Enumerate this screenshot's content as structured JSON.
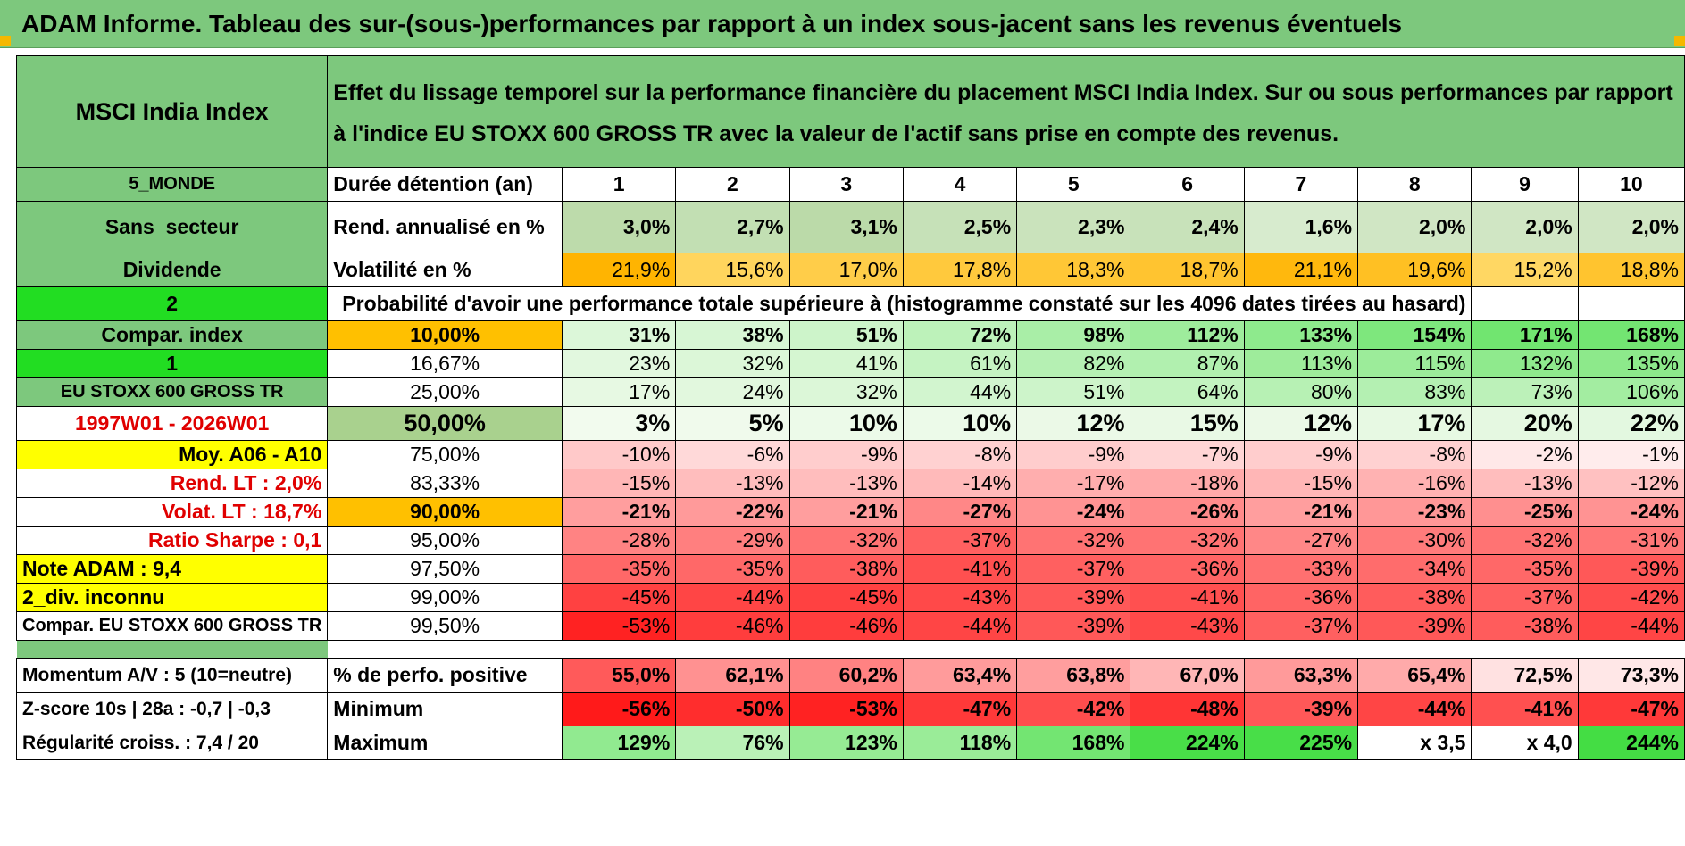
{
  "title": "ADAM Informe. Tableau des sur-(sous-)performances par rapport à un index sous-jacent sans les revenus éventuels",
  "header": {
    "index_name": "MSCI India Index",
    "description": "Effet du lissage temporel sur la performance financière du placement MSCI India Index. Sur ou sous performances par rapport à l'indice EU STOXX 600 GROSS TR avec la valeur de l'actif sans prise en compte des revenus."
  },
  "rows": {
    "holding": {
      "side": "5_MONDE",
      "label": "Durée détention (an)",
      "years": [
        "1",
        "2",
        "3",
        "4",
        "5",
        "6",
        "7",
        "8",
        "9",
        "10"
      ]
    },
    "return": {
      "side": "Sans_secteur",
      "label": "Rend. annualisé en %",
      "values": [
        "3,0%",
        "2,7%",
        "3,1%",
        "2,5%",
        "2,3%",
        "2,4%",
        "1,6%",
        "2,0%",
        "2,0%",
        "2,0%"
      ]
    },
    "volatility": {
      "side": "Dividende",
      "label": "Volatilité en %",
      "values": [
        "21,9%",
        "15,6%",
        "17,0%",
        "17,8%",
        "18,3%",
        "18,7%",
        "21,1%",
        "19,6%",
        "15,2%",
        "18,8%"
      ]
    },
    "prob_header": {
      "side": "2",
      "label": "Probabilité d'avoir une performance totale supérieure à (histogramme constaté sur les 4096 dates tirées au hasard)"
    },
    "quantiles": [
      {
        "side": "Compar. index",
        "pct": "10,00%",
        "values": [
          "31%",
          "38%",
          "51%",
          "72%",
          "98%",
          "112%",
          "133%",
          "154%",
          "171%",
          "168%"
        ]
      },
      {
        "side": "1",
        "pct": "16,67%",
        "values": [
          "23%",
          "32%",
          "41%",
          "61%",
          "82%",
          "87%",
          "113%",
          "115%",
          "132%",
          "135%"
        ]
      },
      {
        "side": "EU STOXX 600 GROSS TR",
        "pct": "25,00%",
        "values": [
          "17%",
          "24%",
          "32%",
          "44%",
          "51%",
          "64%",
          "80%",
          "83%",
          "73%",
          "106%"
        ]
      },
      {
        "side": "1997W01 - 2026W01",
        "pct": "50,00%",
        "values": [
          "3%",
          "5%",
          "10%",
          "10%",
          "12%",
          "15%",
          "12%",
          "17%",
          "20%",
          "22%"
        ]
      },
      {
        "side": "Moy. A06 - A10",
        "pct": "75,00%",
        "values": [
          "-10%",
          "-6%",
          "-9%",
          "-8%",
          "-9%",
          "-7%",
          "-9%",
          "-8%",
          "-2%",
          "-1%"
        ]
      },
      {
        "side": "Rend. LT :   2,0%",
        "pct": "83,33%",
        "values": [
          "-15%",
          "-13%",
          "-13%",
          "-14%",
          "-17%",
          "-18%",
          "-15%",
          "-16%",
          "-13%",
          "-12%"
        ]
      },
      {
        "side": "Volat. LT :   18,7%",
        "pct": "90,00%",
        "values": [
          "-21%",
          "-22%",
          "-21%",
          "-27%",
          "-24%",
          "-26%",
          "-21%",
          "-23%",
          "-25%",
          "-24%"
        ]
      },
      {
        "side": "Ratio Sharpe :    0,1",
        "pct": "95,00%",
        "values": [
          "-28%",
          "-29%",
          "-32%",
          "-37%",
          "-32%",
          "-32%",
          "-27%",
          "-30%",
          "-32%",
          "-31%"
        ]
      },
      {
        "side": "Note ADAM : 9,4",
        "pct": "97,50%",
        "values": [
          "-35%",
          "-35%",
          "-38%",
          "-41%",
          "-37%",
          "-36%",
          "-33%",
          "-34%",
          "-35%",
          "-39%"
        ]
      },
      {
        "side": "2_div. inconnu",
        "pct": "99,00%",
        "values": [
          "-45%",
          "-44%",
          "-45%",
          "-43%",
          "-39%",
          "-41%",
          "-36%",
          "-38%",
          "-37%",
          "-42%"
        ]
      },
      {
        "side": "Compar. EU STOXX 600 GROSS TR",
        "pct": "99,50%",
        "values": [
          "-53%",
          "-46%",
          "-46%",
          "-44%",
          "-39%",
          "-43%",
          "-37%",
          "-39%",
          "-38%",
          "-44%"
        ]
      }
    ],
    "positive": {
      "side": "Momentum A/V : 5 (10=neutre)",
      "label": "% de perfo. positive",
      "values": [
        "55,0%",
        "62,1%",
        "60,2%",
        "63,4%",
        "63,8%",
        "67,0%",
        "63,3%",
        "65,4%",
        "72,5%",
        "73,3%"
      ]
    },
    "minimum": {
      "side": "Z-score 10s | 28a : -0,7 | -0,3",
      "label": "Minimum",
      "values": [
        "-56%",
        "-50%",
        "-53%",
        "-47%",
        "-42%",
        "-48%",
        "-39%",
        "-44%",
        "-41%",
        "-47%"
      ]
    },
    "maximum": {
      "side": "Régularité croiss. : 7,4 / 20",
      "label": "Maximum",
      "values": [
        "129%",
        "76%",
        "123%",
        "118%",
        "168%",
        "224%",
        "225%",
        "x 3,5",
        "x 4,0",
        "244%"
      ]
    }
  },
  "colors": {
    "header_green": "#7dc87d",
    "bright_green": "#22dd22",
    "yellow": "#ffff00",
    "orange": "#ffc000",
    "return_green": "#c6e0b4",
    "red_text": "#e00000"
  }
}
